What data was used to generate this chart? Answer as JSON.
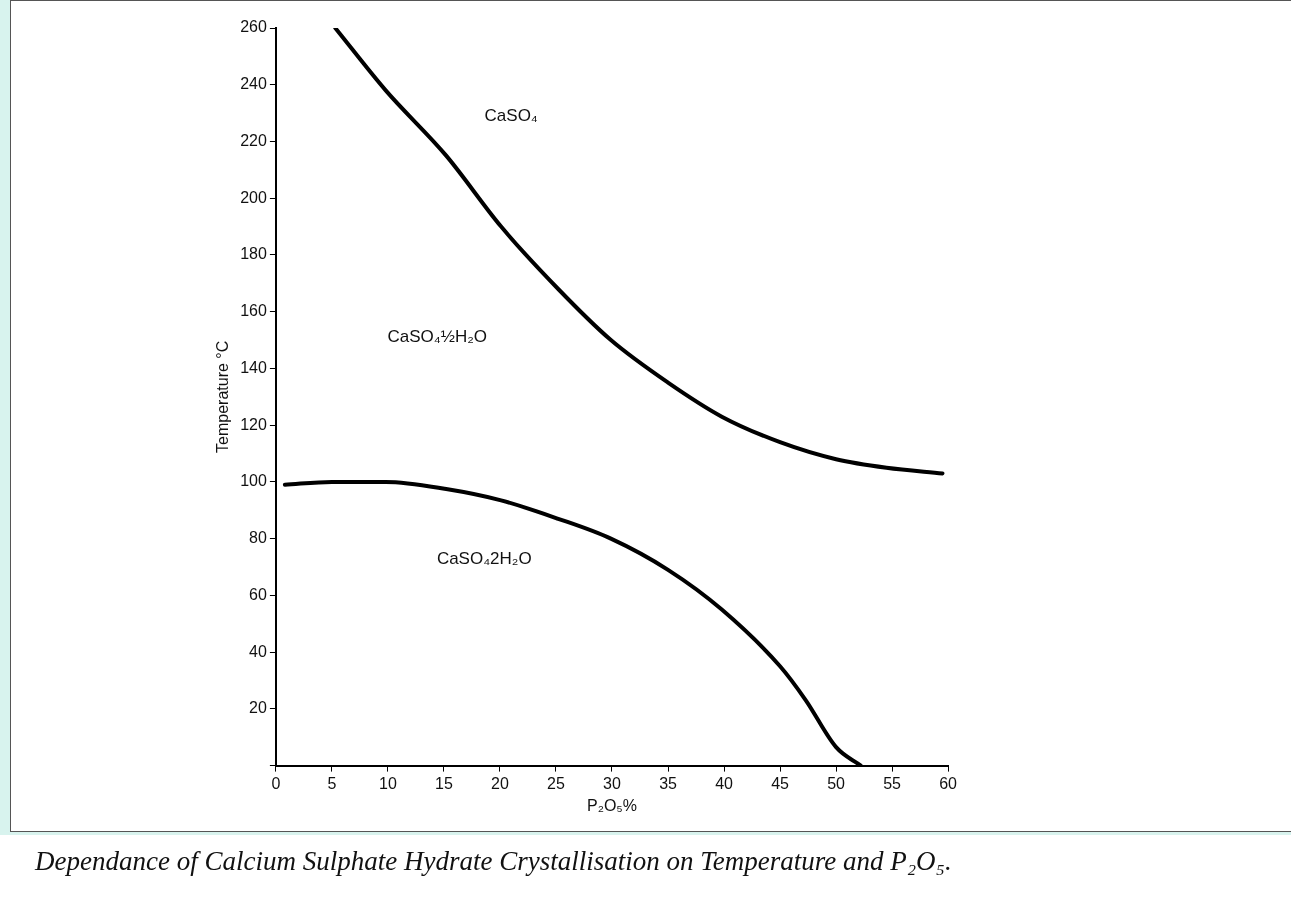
{
  "chart_data": {
    "type": "line",
    "title": "Dependance of Calcium Sulphate Hydrate Crystallisation on Temperature  and P₂O₅.",
    "xlabel": "P₂O₅%",
    "ylabel": "Temperature °C",
    "xlim": [
      0,
      60
    ],
    "ylim": [
      0,
      260
    ],
    "xticks": [
      0,
      5,
      10,
      15,
      20,
      25,
      30,
      35,
      40,
      45,
      50,
      55,
      60
    ],
    "yticks": [
      {
        "value": 0,
        "label": null
      },
      20,
      40,
      60,
      80,
      100,
      120,
      140,
      160,
      180,
      200,
      220,
      240,
      260
    ],
    "grid": false,
    "legend": false,
    "marker": "none",
    "line_style": "solid",
    "series": [
      {
        "color": "#000000",
        "x": [
          5.3,
          9.8,
          15.2,
          20.1,
          25.2,
          29.9,
          35,
          39.8,
          45,
          50,
          54.5,
          59.5
        ],
        "values": [
          260,
          238,
          215,
          190,
          168,
          150,
          135,
          123,
          114,
          108,
          105,
          103
        ]
      },
      {
        "color": "#000000",
        "x": [
          0.8,
          5,
          9.8,
          15.2,
          20.1,
          25.2,
          29.9,
          35,
          39.8,
          45,
          47.3,
          50,
          52.2
        ],
        "values": [
          99,
          100,
          100,
          97.5,
          93.5,
          87,
          80,
          69,
          55,
          35,
          23,
          6.5,
          0
        ]
      }
    ],
    "annotations": [
      "CaSO₄",
      "CaSO₄½H₂O",
      "CaSO₄2H₂O"
    ]
  }
}
